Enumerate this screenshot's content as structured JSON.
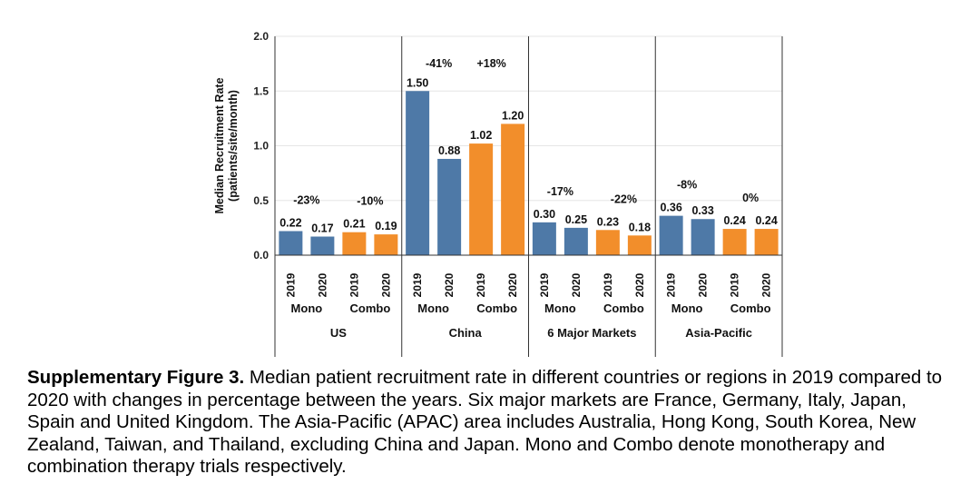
{
  "chart_data": {
    "type": "bar",
    "ylabel": "Median Recruitment Rate",
    "ylabel_units": "(patients/site/month)",
    "ylim": [
      0,
      2.0
    ],
    "y_ticks": [
      "0.0",
      "0.5",
      "1.0",
      "1.5",
      "2.0"
    ],
    "y_tick_values": [
      0,
      0.5,
      1.0,
      1.5,
      2.0
    ],
    "grid": true,
    "colors": {
      "Mono": "#4e79a7",
      "Combo": "#f28e2b"
    },
    "groups": [
      {
        "region": "US",
        "subgroups": [
          {
            "label": "Mono",
            "years": [
              "2019",
              "2020"
            ],
            "values": [
              0.22,
              0.17
            ],
            "value_labels": [
              "0.22",
              "0.17"
            ],
            "change": "-23%"
          },
          {
            "label": "Combo",
            "years": [
              "2019",
              "2020"
            ],
            "values": [
              0.21,
              0.19
            ],
            "value_labels": [
              "0.21",
              "0.19"
            ],
            "change": "-10%"
          }
        ]
      },
      {
        "region": "China",
        "subgroups": [
          {
            "label": "Mono",
            "years": [
              "2019",
              "2020"
            ],
            "values": [
              1.5,
              0.88
            ],
            "value_labels": [
              "1.50",
              "0.88"
            ],
            "change": "-41%"
          },
          {
            "label": "Combo",
            "years": [
              "2019",
              "2020"
            ],
            "values": [
              1.02,
              1.2
            ],
            "value_labels": [
              "1.02",
              "1.20"
            ],
            "change": "+18%"
          }
        ]
      },
      {
        "region": "6 Major Markets",
        "subgroups": [
          {
            "label": "Mono",
            "years": [
              "2019",
              "2020"
            ],
            "values": [
              0.3,
              0.25
            ],
            "value_labels": [
              "0.30",
              "0.25"
            ],
            "change": "-17%"
          },
          {
            "label": "Combo",
            "years": [
              "2019",
              "2020"
            ],
            "values": [
              0.23,
              0.18
            ],
            "value_labels": [
              "0.23",
              "0.18"
            ],
            "change": "-22%"
          }
        ]
      },
      {
        "region": "Asia-Pacific",
        "subgroups": [
          {
            "label": "Mono",
            "years": [
              "2019",
              "2020"
            ],
            "values": [
              0.36,
              0.33
            ],
            "value_labels": [
              "0.36",
              "0.33"
            ],
            "change": "-8%"
          },
          {
            "label": "Combo",
            "years": [
              "2019",
              "2020"
            ],
            "values": [
              0.24,
              0.24
            ],
            "value_labels": [
              "0.24",
              "0.24"
            ],
            "change": "0%"
          }
        ]
      }
    ]
  },
  "caption": {
    "label": "Supplementary Figure 3.",
    "text": " Median patient recruitment rate in different countries or regions in 2019 compared to 2020 with changes in percentage between the years. Six major markets are France, Germany, Italy, Japan, Spain and United Kingdom. The Asia-Pacific (APAC) area includes Australia, Hong Kong, South Korea, New Zealand, Taiwan, and Thailand, excluding China and Japan. Mono and Combo denote monotherapy and combination therapy trials respectively."
  }
}
